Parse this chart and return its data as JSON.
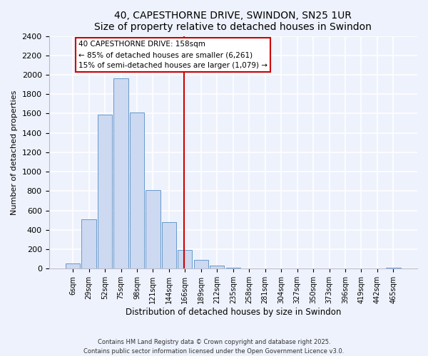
{
  "title": "40, CAPESTHORNE DRIVE, SWINDON, SN25 1UR",
  "subtitle": "Size of property relative to detached houses in Swindon",
  "xlabel": "Distribution of detached houses by size in Swindon",
  "ylabel": "Number of detached properties",
  "bar_labels": [
    "6sqm",
    "29sqm",
    "52sqm",
    "75sqm",
    "98sqm",
    "121sqm",
    "144sqm",
    "166sqm",
    "189sqm",
    "212sqm",
    "235sqm",
    "258sqm",
    "281sqm",
    "304sqm",
    "327sqm",
    "350sqm",
    "373sqm",
    "396sqm",
    "419sqm",
    "442sqm",
    "465sqm"
  ],
  "bar_values": [
    55,
    510,
    1590,
    1960,
    1610,
    810,
    480,
    190,
    90,
    35,
    10,
    0,
    0,
    0,
    0,
    0,
    0,
    0,
    0,
    0,
    10
  ],
  "bar_color": "#ccd9f0",
  "bar_edge_color": "#6699cc",
  "vline_color": "#cc0000",
  "ylim": [
    0,
    2400
  ],
  "yticks": [
    0,
    200,
    400,
    600,
    800,
    1000,
    1200,
    1400,
    1600,
    1800,
    2000,
    2200,
    2400
  ],
  "annotation_title": "40 CAPESTHORNE DRIVE: 158sqm",
  "annotation_line1": "← 85% of detached houses are smaller (6,261)",
  "annotation_line2": "15% of semi-detached houses are larger (1,079) →",
  "annotation_box_color": "#ffffff",
  "annotation_box_edge": "#cc0000",
  "footer1": "Contains HM Land Registry data © Crown copyright and database right 2025.",
  "footer2": "Contains public sector information licensed under the Open Government Licence v3.0.",
  "background_color": "#eef2fc",
  "grid_color": "#ffffff",
  "fig_width": 6.0,
  "fig_height": 5.0,
  "dpi": 100
}
